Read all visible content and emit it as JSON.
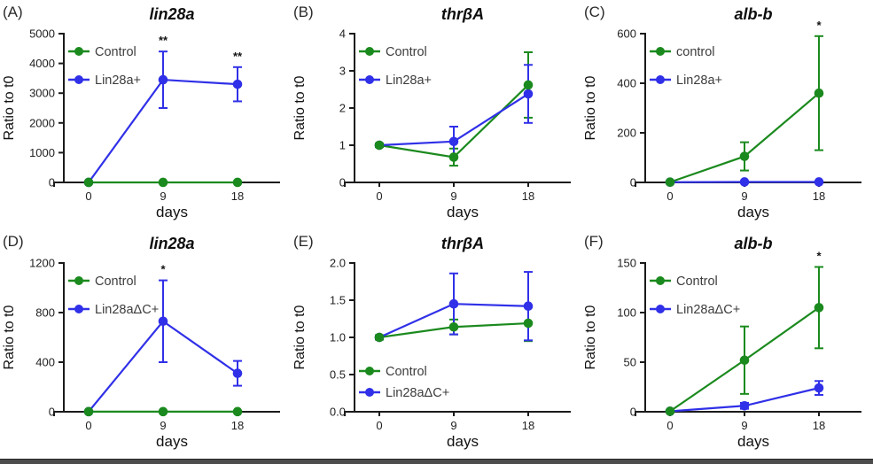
{
  "figure": {
    "xlabel": "days",
    "ylabel": "Ratio to t0",
    "colors": {
      "control_green": "#1b8a1e",
      "treatment_blue": "#3030e8",
      "axis": "#1a1a1a"
    }
  },
  "chart_data": [
    {
      "type": "line",
      "panel_label": "(A)",
      "title": "lin28a",
      "xlabel": "days",
      "ylabel": "Ratio to t0",
      "x": [
        0,
        9,
        18
      ],
      "xtick_labels": [
        "0",
        "9",
        "18"
      ],
      "ylim": [
        0,
        5000
      ],
      "yticks": [
        0,
        1000,
        2000,
        3000,
        4000,
        5000
      ],
      "ytick_labels": [
        "0",
        "1000",
        "2000",
        "3000",
        "4000",
        "5000"
      ],
      "grid": false,
      "legend_position": "top-left",
      "series": [
        {
          "name": "Control",
          "color": "#1b8a1e",
          "values": [
            1,
            1,
            1
          ],
          "errors": [
            0,
            0,
            0
          ]
        },
        {
          "name": "Lin28a+",
          "color": "#3030e8",
          "values": [
            1,
            3450,
            3300
          ],
          "errors": [
            0,
            950,
            575
          ]
        }
      ],
      "significance": [
        {
          "x": 9,
          "label": "**"
        },
        {
          "x": 18,
          "label": "**"
        }
      ]
    },
    {
      "type": "line",
      "panel_label": "(B)",
      "title": "thrβA",
      "xlabel": "days",
      "ylabel": "Ratio to t0",
      "x": [
        0,
        9,
        18
      ],
      "xtick_labels": [
        "0",
        "9",
        "18"
      ],
      "ylim": [
        0,
        4
      ],
      "yticks": [
        0,
        1,
        2,
        3,
        4
      ],
      "ytick_labels": [
        "0",
        "1",
        "2",
        "3",
        "4"
      ],
      "grid": false,
      "legend_position": "top-left",
      "series": [
        {
          "name": "Control",
          "color": "#1b8a1e",
          "values": [
            1.0,
            0.68,
            2.62
          ],
          "errors": [
            0.05,
            0.23,
            0.88
          ]
        },
        {
          "name": "Lin28a+",
          "color": "#3030e8",
          "values": [
            1.0,
            1.1,
            2.38
          ],
          "errors": [
            0,
            0.4,
            0.78
          ]
        }
      ],
      "significance": []
    },
    {
      "type": "line",
      "panel_label": "(C)",
      "title": "alb-b",
      "xlabel": "days",
      "ylabel": "Ratio to t0",
      "x": [
        0,
        9,
        18
      ],
      "xtick_labels": [
        "0",
        "9",
        "18"
      ],
      "ylim": [
        0,
        600
      ],
      "yticks": [
        0,
        200,
        400,
        600
      ],
      "ytick_labels": [
        "0",
        "200",
        "400",
        "600"
      ],
      "grid": false,
      "legend_position": "top-left",
      "series": [
        {
          "name": "control",
          "color": "#1b8a1e",
          "values": [
            1,
            105,
            360
          ],
          "errors": [
            0,
            57,
            230
          ]
        },
        {
          "name": "Lin28a+",
          "color": "#3030e8",
          "values": [
            1,
            2,
            2
          ],
          "errors": [
            0,
            0,
            0
          ]
        }
      ],
      "significance": [
        {
          "x": 18,
          "label": "*"
        }
      ]
    },
    {
      "type": "line",
      "panel_label": "(D)",
      "title": "lin28a",
      "xlabel": "days",
      "ylabel": "Ratio to t0",
      "x": [
        0,
        9,
        18
      ],
      "xtick_labels": [
        "0",
        "9",
        "18"
      ],
      "ylim": [
        0,
        1200
      ],
      "yticks": [
        0,
        400,
        800,
        1200
      ],
      "ytick_labels": [
        "0",
        "400",
        "800",
        "1200"
      ],
      "grid": false,
      "legend_position": "top-left",
      "series": [
        {
          "name": "Control",
          "color": "#1b8a1e",
          "values": [
            1,
            1,
            1
          ],
          "errors": [
            0,
            0,
            0
          ]
        },
        {
          "name": "Lin28aΔC+",
          "color": "#3030e8",
          "values": [
            1,
            730,
            310
          ],
          "errors": [
            0,
            330,
            100
          ]
        }
      ],
      "significance": [
        {
          "x": 9,
          "label": "*"
        }
      ]
    },
    {
      "type": "line",
      "panel_label": "(E)",
      "title": "thrβA",
      "xlabel": "days",
      "ylabel": "Ratio to t0",
      "x": [
        0,
        9,
        18
      ],
      "xtick_labels": [
        "0",
        "9",
        "18"
      ],
      "ylim": [
        0,
        2
      ],
      "yticks": [
        0,
        0.5,
        1,
        1.5,
        2
      ],
      "ytick_labels": [
        "0.0",
        "0.5",
        "1.0",
        "1.5",
        "2.0"
      ],
      "grid": false,
      "legend_position": "bottom-left",
      "series": [
        {
          "name": "Control",
          "color": "#1b8a1e",
          "values": [
            1.0,
            1.14,
            1.19
          ],
          "errors": [
            0.03,
            0.1,
            0.24
          ]
        },
        {
          "name": "Lin28aΔC+",
          "color": "#3030e8",
          "values": [
            1.0,
            1.45,
            1.42
          ],
          "errors": [
            0.02,
            0.41,
            0.46
          ]
        }
      ],
      "significance": []
    },
    {
      "type": "line",
      "panel_label": "(F)",
      "title": "alb-b",
      "xlabel": "days",
      "ylabel": "Ratio to t0",
      "x": [
        0,
        9,
        18
      ],
      "xtick_labels": [
        "0",
        "9",
        "18"
      ],
      "ylim": [
        0,
        150
      ],
      "yticks": [
        0,
        50,
        100,
        150
      ],
      "ytick_labels": [
        "0",
        "50",
        "100",
        "150"
      ],
      "grid": false,
      "legend_position": "top-left",
      "series": [
        {
          "name": "Control",
          "color": "#1b8a1e",
          "values": [
            0.5,
            52,
            105
          ],
          "errors": [
            0,
            34,
            41
          ]
        },
        {
          "name": "Lin28aΔC+",
          "color": "#3030e8",
          "values": [
            0.5,
            6,
            24
          ],
          "errors": [
            0,
            3,
            7
          ]
        }
      ],
      "significance": [
        {
          "x": 18,
          "label": "*"
        }
      ]
    }
  ]
}
